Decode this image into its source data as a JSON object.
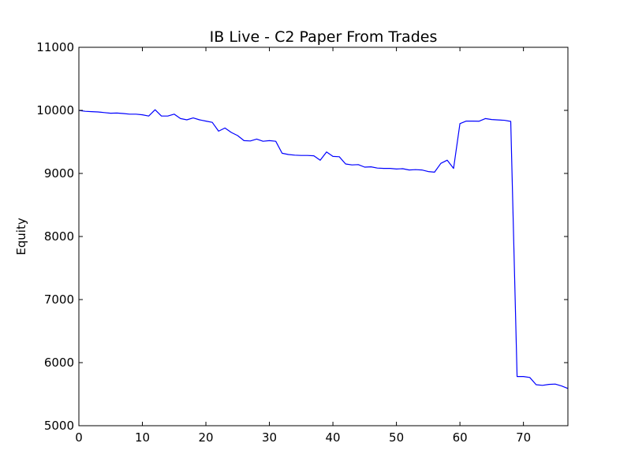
{
  "chart_data": {
    "type": "line",
    "title": "IB Live - C2 Paper From Trades",
    "xlabel": "",
    "ylabel": "Equity",
    "xlim": [
      0,
      77
    ],
    "ylim": [
      5000,
      11000
    ],
    "xticks": [
      0,
      10,
      20,
      30,
      40,
      50,
      60,
      70
    ],
    "yticks": [
      5000,
      6000,
      7000,
      8000,
      9000,
      10000,
      11000
    ],
    "grid": false,
    "legend": "none",
    "series": [
      {
        "name": "",
        "color": "#0000ff",
        "x": [
          0,
          1,
          2,
          3,
          4,
          5,
          6,
          7,
          8,
          9,
          10,
          11,
          12,
          13,
          14,
          15,
          16,
          17,
          18,
          19,
          20,
          21,
          22,
          23,
          24,
          25,
          26,
          27,
          28,
          29,
          30,
          31,
          32,
          33,
          34,
          35,
          36,
          37,
          38,
          39,
          40,
          41,
          42,
          43,
          44,
          45,
          46,
          47,
          48,
          49,
          50,
          51,
          52,
          53,
          54,
          55,
          56,
          57,
          58,
          59,
          60,
          61,
          62,
          63,
          64,
          65,
          66,
          67,
          68,
          69,
          70,
          71,
          72,
          73,
          74,
          75,
          76,
          77
        ],
        "y": [
          10000,
          9985,
          9980,
          9975,
          9965,
          9955,
          9958,
          9950,
          9940,
          9940,
          9930,
          9910,
          10010,
          9910,
          9910,
          9940,
          9870,
          9850,
          9880,
          9850,
          9830,
          9810,
          9670,
          9720,
          9650,
          9600,
          9520,
          9515,
          9545,
          9510,
          9520,
          9510,
          9320,
          9300,
          9290,
          9285,
          9285,
          9280,
          9210,
          9340,
          9270,
          9265,
          9150,
          9135,
          9140,
          9100,
          9105,
          9085,
          9080,
          9080,
          9070,
          9075,
          9055,
          9060,
          9055,
          9030,
          9020,
          9160,
          9210,
          9080,
          9790,
          9830,
          9830,
          9828,
          9870,
          9855,
          9848,
          9843,
          9825,
          5780,
          5780,
          5765,
          5650,
          5640,
          5655,
          5660,
          5630,
          5590
        ]
      }
    ]
  }
}
